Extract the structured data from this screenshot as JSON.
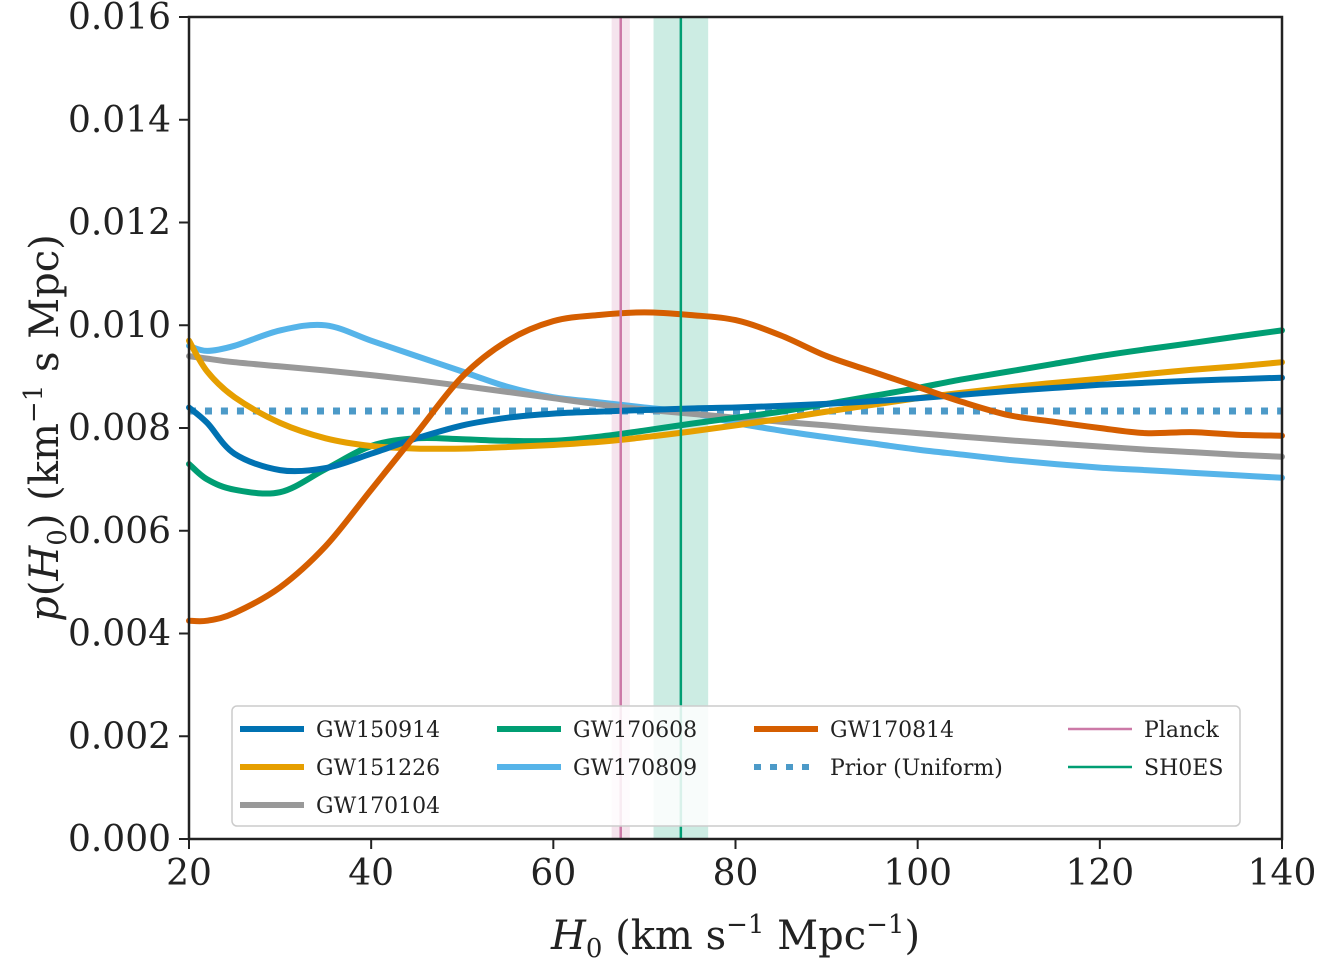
{
  "chart_data": {
    "type": "line",
    "title": "",
    "xlabel": "H0 (km s^-1 Mpc^-1)",
    "ylabel": "p(H0) (km^-1 s Mpc)",
    "xlim": [
      20,
      140
    ],
    "ylim": [
      0,
      0.016
    ],
    "x_ticks": [
      "20",
      "40",
      "60",
      "80",
      "100",
      "120",
      "140"
    ],
    "y_ticks": [
      "0.000",
      "0.002",
      "0.004",
      "0.006",
      "0.008",
      "0.010",
      "0.012",
      "0.014",
      "0.016"
    ],
    "grid": false,
    "legend_position": "lower-center",
    "x": [
      20,
      22,
      25,
      30,
      35,
      40,
      45,
      50,
      55,
      60,
      65,
      70,
      75,
      80,
      85,
      90,
      95,
      100,
      105,
      110,
      115,
      120,
      125,
      130,
      135,
      140
    ],
    "series": [
      {
        "name": "GW150914",
        "color": "#0072b2",
        "style": "solid",
        "values": [
          0.0084,
          0.0081,
          0.0075,
          0.00718,
          0.00722,
          0.0075,
          0.0078,
          0.00805,
          0.0082,
          0.00828,
          0.00832,
          0.00835,
          0.00838,
          0.0084,
          0.00843,
          0.00847,
          0.00852,
          0.00858,
          0.00865,
          0.00872,
          0.00878,
          0.00884,
          0.00888,
          0.00892,
          0.00895,
          0.00898
        ]
      },
      {
        "name": "GW151226",
        "color": "#e69f00",
        "style": "solid",
        "values": [
          0.0097,
          0.0091,
          0.0086,
          0.0081,
          0.0078,
          0.00765,
          0.0076,
          0.0076,
          0.00763,
          0.00767,
          0.00773,
          0.00782,
          0.00793,
          0.00805,
          0.00818,
          0.00832,
          0.00845,
          0.00858,
          0.00869,
          0.00879,
          0.00888,
          0.00896,
          0.00905,
          0.00913,
          0.0092,
          0.00928
        ]
      },
      {
        "name": "GW170104",
        "color": "#999999",
        "style": "solid",
        "values": [
          0.0094,
          0.00935,
          0.00928,
          0.0092,
          0.00912,
          0.00903,
          0.00893,
          0.00882,
          0.0087,
          0.00858,
          0.00846,
          0.00836,
          0.00828,
          0.0082,
          0.00812,
          0.00805,
          0.00797,
          0.0079,
          0.00783,
          0.00776,
          0.0077,
          0.00764,
          0.00758,
          0.00753,
          0.00748,
          0.00744
        ]
      },
      {
        "name": "GW170608",
        "color": "#009e73",
        "style": "solid",
        "values": [
          0.0073,
          0.007,
          0.0068,
          0.00675,
          0.0072,
          0.00765,
          0.0078,
          0.00778,
          0.00775,
          0.00775,
          0.00783,
          0.00795,
          0.00808,
          0.0082,
          0.00832,
          0.00847,
          0.00862,
          0.00878,
          0.00895,
          0.0091,
          0.00925,
          0.0094,
          0.00953,
          0.00965,
          0.00978,
          0.0099
        ]
      },
      {
        "name": "GW170809",
        "color": "#56b4e9",
        "style": "solid",
        "values": [
          0.0096,
          0.0095,
          0.0096,
          0.0099,
          0.01,
          0.0097,
          0.0094,
          0.0091,
          0.0088,
          0.0086,
          0.0085,
          0.0084,
          0.0083,
          0.0081,
          0.00795,
          0.00782,
          0.0077,
          0.00758,
          0.00748,
          0.00738,
          0.0073,
          0.00723,
          0.00718,
          0.00713,
          0.00708,
          0.00703
        ]
      },
      {
        "name": "GW170814",
        "color": "#d55e00",
        "style": "solid",
        "values": [
          0.00425,
          0.00425,
          0.0044,
          0.0049,
          0.0057,
          0.0068,
          0.0079,
          0.009,
          0.0097,
          0.01008,
          0.0102,
          0.01025,
          0.0102,
          0.0101,
          0.0098,
          0.0094,
          0.0091,
          0.0088,
          0.0085,
          0.00825,
          0.00812,
          0.008,
          0.0079,
          0.00792,
          0.00787,
          0.00785
        ]
      },
      {
        "name": "Prior (Uniform)",
        "color": "#4c9ac8",
        "style": "dotted",
        "values": [
          0.00833,
          0.00833,
          0.00833,
          0.00833,
          0.00833,
          0.00833,
          0.00833,
          0.00833,
          0.00833,
          0.00833,
          0.00833,
          0.00833,
          0.00833,
          0.00833,
          0.00833,
          0.00833,
          0.00833,
          0.00833,
          0.00833,
          0.00833,
          0.00833,
          0.00833,
          0.00833,
          0.00833,
          0.00833,
          0.00833
        ]
      }
    ],
    "vertical_lines": [
      {
        "name": "Planck",
        "color": "#cc79a7",
        "x": 67.4,
        "band": [
          66.4,
          68.4
        ]
      },
      {
        "name": "SH0ES",
        "color": "#009e73",
        "x": 74.0,
        "band": [
          71.0,
          77.0
        ]
      }
    ],
    "legend": [
      {
        "name": "GW150914",
        "color": "#0072b2",
        "style": "solid",
        "weight": "thick"
      },
      {
        "name": "GW170608",
        "color": "#009e73",
        "style": "solid",
        "weight": "thick"
      },
      {
        "name": "GW170814",
        "color": "#d55e00",
        "style": "solid",
        "weight": "thick"
      },
      {
        "name": "Planck",
        "color": "#cc79a7",
        "style": "solid",
        "weight": "thin"
      },
      {
        "name": "GW151226",
        "color": "#e69f00",
        "style": "solid",
        "weight": "thick"
      },
      {
        "name": "GW170809",
        "color": "#56b4e9",
        "style": "solid",
        "weight": "thick"
      },
      {
        "name": "Prior (Uniform)",
        "color": "#4c9ac8",
        "style": "dotted",
        "weight": "thick"
      },
      {
        "name": "SH0ES",
        "color": "#009e73",
        "style": "solid",
        "weight": "thin"
      },
      {
        "name": "GW170104",
        "color": "#999999",
        "style": "solid",
        "weight": "thick"
      }
    ]
  }
}
